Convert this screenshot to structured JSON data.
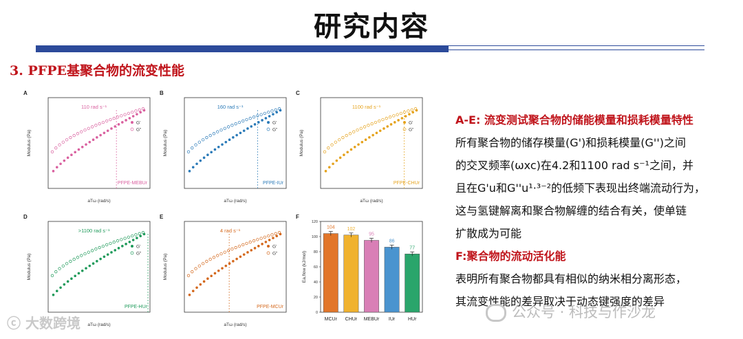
{
  "header": {
    "title": "研究内容"
  },
  "section": {
    "title": "3. PFPE基聚合物的流变性能"
  },
  "figure": {
    "modulus_ylabel": "Modulus (Pa)",
    "freq_xlabel": "aTω (rad/s)",
    "legend": [
      "G'",
      "G\""
    ],
    "panels": [
      {
        "letter": "A",
        "crossover": "110 rad s⁻¹",
        "sample": "PFPE-MEBUr",
        "color": "#d9609f"
      },
      {
        "letter": "B",
        "crossover": "160 rad s⁻¹",
        "sample": "PFPE-IUr",
        "color": "#2a7ab8"
      },
      {
        "letter": "C",
        "crossover": "1100 rad s⁻¹",
        "sample": "PFPE-CHUr",
        "color": "#e5a21b"
      },
      {
        "letter": "D",
        "crossover": ">1100 rad s⁻¹",
        "sample": "PFPE-HUr",
        "color": "#1e9a5a"
      },
      {
        "letter": "E",
        "crossover": "4 rad s⁻¹",
        "sample": "PFPE-MCUr",
        "color": "#d4681c"
      }
    ],
    "panel_f": {
      "letter": "F",
      "ylabel": "Ea,flow (kJ/mol)",
      "y_ticks": [
        "0",
        "20",
        "40",
        "60",
        "80",
        "100",
        "120"
      ]
    }
  },
  "chart_data": {
    "type": "bar",
    "categories": [
      "MCUr",
      "CHUr",
      "MEBUr",
      "IUr",
      "HUr"
    ],
    "values": [
      104,
      102,
      95,
      86,
      77
    ],
    "ylim": [
      0,
      120
    ],
    "colors": [
      "#e2762a",
      "#f0b22e",
      "#d97fb6",
      "#4a94cf",
      "#2aa56b"
    ]
  },
  "text": {
    "heading1": "A-E: 流变测试聚合物的储能模量和损耗模量特性",
    "para1_lines": [
      "所有聚合物的储存模量(G')和损耗模量(G'')之间",
      "的交叉频率(ωxc)在4.2和1100  rad s⁻¹之间，并",
      "且在G'u和G''u¹·³⁻²的低频下表现出终端流动行为，",
      "这与氢键解离和聚合物解缠的结合有关，使单链",
      "扩散成为可能"
    ],
    "heading2": "F:聚合物的流动活化能",
    "para2_lines": [
      "表明所有聚合物都具有相似的纳米相分离形态，",
      "其流变性能的差异取决于动态键强度的差异"
    ]
  },
  "watermarks": {
    "left": "ⓒ 大数跨境",
    "right": "公众号 · 科技与作沙龙"
  }
}
